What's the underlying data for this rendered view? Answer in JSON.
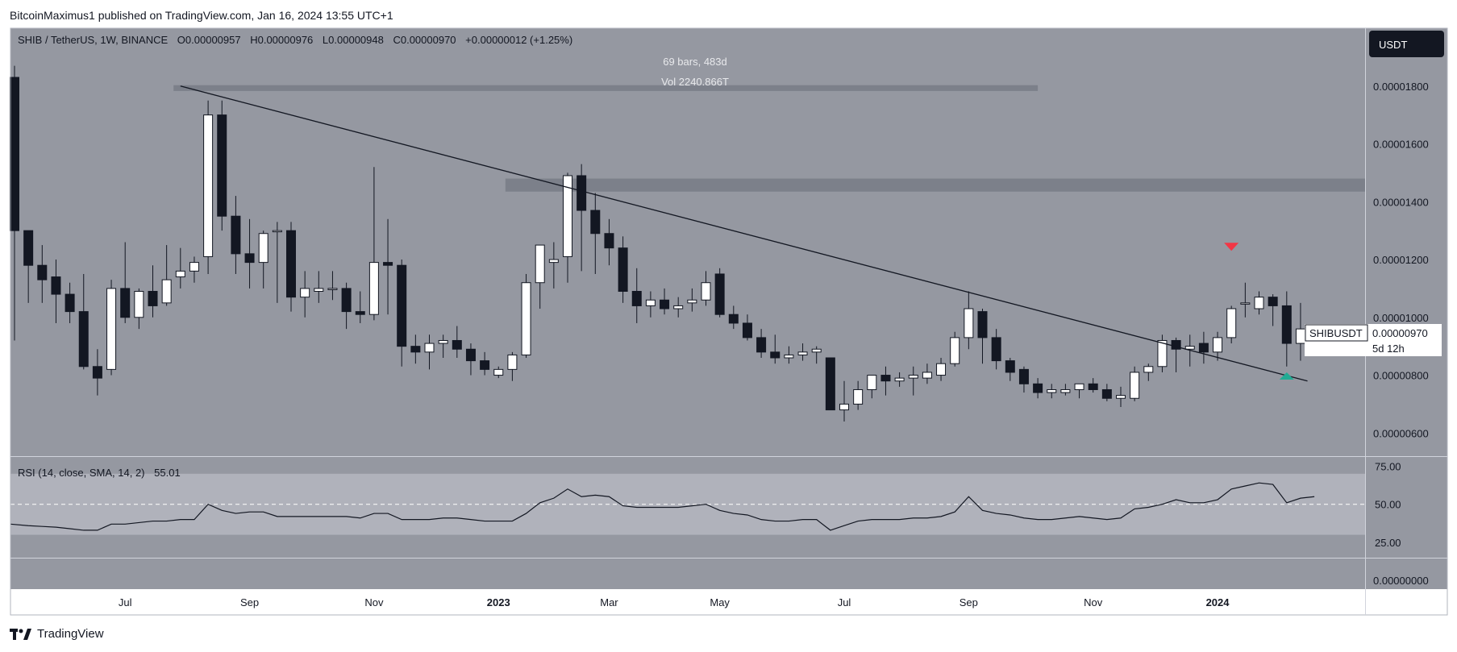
{
  "header": {
    "published_text": "BitcoinMaximus1 published on TradingView.com, Jan 16, 2024 13:55 UTC+1"
  },
  "legend": {
    "symbol": "SHIB / TetherUS, 1W, BINANCE",
    "open_label": "O",
    "open": "0.00000957",
    "high_label": "H",
    "high": "0.00000976",
    "low_label": "L",
    "low": "0.00000948",
    "close_label": "C",
    "close": "0.00000970",
    "change": "+0.00000012 (+1.25%)"
  },
  "range_info": {
    "bars": "69 bars, 483d",
    "vol": "Vol 2240.866T"
  },
  "currency_button": "USDT",
  "price_tag": {
    "symbol": "SHIBUSDT",
    "price": "0.00000970",
    "countdown": "5d 12h"
  },
  "footer": {
    "brand": "TradingView"
  },
  "colors": {
    "background": "#9598a1",
    "up_body": "#ffffff",
    "down_body": "#131722",
    "wick": "#131722",
    "resistance": "#787b86",
    "trendline": "#131722",
    "rsi_band": "#b2b5be",
    "bearish_marker": "#f23645",
    "bullish_marker": "#22ab94"
  },
  "chart_data": [
    {
      "type": "candlestick",
      "title": "SHIB / TetherUS, 1W, BINANCE",
      "x_tick_labels": [
        "Jul",
        "Sep",
        "Nov",
        "2023",
        "Mar",
        "May",
        "Jul",
        "Sep",
        "Nov",
        "2024"
      ],
      "x_tick_index": [
        8,
        17,
        26,
        35,
        43,
        51,
        60,
        69,
        78,
        87
      ],
      "y_axis_labels": [
        "0.00001800",
        "0.00001600",
        "0.00001400",
        "0.00001200",
        "0.00001000",
        "0.00000800",
        "0.00000600"
      ],
      "y_axis_values": [
        18,
        16,
        14,
        12,
        10,
        8,
        6
      ],
      "y_unit_multiplier": "1e-6",
      "ylim": [
        5.2,
        20.0
      ],
      "ohlc": [
        [
          18.3,
          18.7,
          9.2,
          13.0
        ],
        [
          13.0,
          13.0,
          10.5,
          11.8
        ],
        [
          11.8,
          12.5,
          10.5,
          11.3
        ],
        [
          11.4,
          12.0,
          9.8,
          10.8
        ],
        [
          10.8,
          11.2,
          9.8,
          10.2
        ],
        [
          10.2,
          11.5,
          8.2,
          8.3
        ],
        [
          8.3,
          8.9,
          7.3,
          7.9
        ],
        [
          8.2,
          11.3,
          8.0,
          11.0
        ],
        [
          11.0,
          12.6,
          9.8,
          10.0
        ],
        [
          10.0,
          11.0,
          9.6,
          10.9
        ],
        [
          10.9,
          11.8,
          10.0,
          10.4
        ],
        [
          10.5,
          12.5,
          10.4,
          11.3
        ],
        [
          11.4,
          12.4,
          11.0,
          11.6
        ],
        [
          11.6,
          12.1,
          11.2,
          11.9
        ],
        [
          12.1,
          17.5,
          11.5,
          17.0
        ],
        [
          17.0,
          17.5,
          13.0,
          13.5
        ],
        [
          13.5,
          14.2,
          11.5,
          12.2
        ],
        [
          12.2,
          13.4,
          11.0,
          11.9
        ],
        [
          11.9,
          13.0,
          11.0,
          12.9
        ],
        [
          13.0,
          13.3,
          10.5,
          13.0
        ],
        [
          13.0,
          13.3,
          10.2,
          10.7
        ],
        [
          10.7,
          11.6,
          10.0,
          11.0
        ],
        [
          10.9,
          11.6,
          10.5,
          11.0
        ],
        [
          11.0,
          11.6,
          10.6,
          11.0
        ],
        [
          11.0,
          11.2,
          9.6,
          10.2
        ],
        [
          10.2,
          10.9,
          9.8,
          10.1
        ],
        [
          10.1,
          15.2,
          9.9,
          11.9
        ],
        [
          11.9,
          13.4,
          10.1,
          11.8
        ],
        [
          11.8,
          12.0,
          8.3,
          9.0
        ],
        [
          9.0,
          9.4,
          8.4,
          8.8
        ],
        [
          8.8,
          9.4,
          8.2,
          9.1
        ],
        [
          9.1,
          9.4,
          8.6,
          9.2
        ],
        [
          9.2,
          9.7,
          8.6,
          8.9
        ],
        [
          8.9,
          9.1,
          8.0,
          8.5
        ],
        [
          8.5,
          8.8,
          8.0,
          8.2
        ],
        [
          8.0,
          8.3,
          7.9,
          8.2
        ],
        [
          8.2,
          8.8,
          7.8,
          8.7
        ],
        [
          8.7,
          11.5,
          8.6,
          11.2
        ],
        [
          11.2,
          12.4,
          10.3,
          12.5
        ],
        [
          11.9,
          12.6,
          11.0,
          12.0
        ],
        [
          12.1,
          15.0,
          11.2,
          14.9
        ],
        [
          14.9,
          15.3,
          11.6,
          13.7
        ],
        [
          13.7,
          14.3,
          11.5,
          12.9
        ],
        [
          12.9,
          13.4,
          11.8,
          12.4
        ],
        [
          12.4,
          12.8,
          10.5,
          10.9
        ],
        [
          10.9,
          11.7,
          9.8,
          10.4
        ],
        [
          10.4,
          10.9,
          10.0,
          10.6
        ],
        [
          10.6,
          11.0,
          10.1,
          10.3
        ],
        [
          10.3,
          10.7,
          10.0,
          10.4
        ],
        [
          10.5,
          11.0,
          10.2,
          10.6
        ],
        [
          10.6,
          11.6,
          10.4,
          11.2
        ],
        [
          11.5,
          11.7,
          10.0,
          10.1
        ],
        [
          10.1,
          10.4,
          9.6,
          9.8
        ],
        [
          9.8,
          10.1,
          9.2,
          9.3
        ],
        [
          9.3,
          9.6,
          8.6,
          8.8
        ],
        [
          8.8,
          9.4,
          8.4,
          8.6
        ],
        [
          8.6,
          9.0,
          8.4,
          8.7
        ],
        [
          8.7,
          9.1,
          8.5,
          8.8
        ],
        [
          8.8,
          9.0,
          8.4,
          8.9
        ],
        [
          8.6,
          8.6,
          6.8,
          6.8
        ],
        [
          6.8,
          7.8,
          6.4,
          7.0
        ],
        [
          7.0,
          7.8,
          6.8,
          7.5
        ],
        [
          7.5,
          8.0,
          7.2,
          8.0
        ],
        [
          8.0,
          8.3,
          7.3,
          7.8
        ],
        [
          7.8,
          8.1,
          7.6,
          7.9
        ],
        [
          7.9,
          8.3,
          7.3,
          8.0
        ],
        [
          7.9,
          8.4,
          7.7,
          8.1
        ],
        [
          8.0,
          8.6,
          7.8,
          8.4
        ],
        [
          8.4,
          9.5,
          8.3,
          9.3
        ],
        [
          9.3,
          10.9,
          8.9,
          10.3
        ],
        [
          10.2,
          10.3,
          8.4,
          9.3
        ],
        [
          9.3,
          9.6,
          8.2,
          8.5
        ],
        [
          8.5,
          8.6,
          7.8,
          8.1
        ],
        [
          8.2,
          8.3,
          7.4,
          7.7
        ],
        [
          7.7,
          7.9,
          7.2,
          7.4
        ],
        [
          7.4,
          7.7,
          7.2,
          7.5
        ],
        [
          7.4,
          7.7,
          7.3,
          7.5
        ],
        [
          7.5,
          7.7,
          7.2,
          7.7
        ],
        [
          7.7,
          7.9,
          7.4,
          7.5
        ],
        [
          7.5,
          7.7,
          7.1,
          7.2
        ],
        [
          7.2,
          7.6,
          6.9,
          7.3
        ],
        [
          7.2,
          8.3,
          7.1,
          8.1
        ],
        [
          8.1,
          8.4,
          7.8,
          8.3
        ],
        [
          8.3,
          9.4,
          8.1,
          9.2
        ],
        [
          9.2,
          9.3,
          8.1,
          8.9
        ],
        [
          8.9,
          9.4,
          8.3,
          9.0
        ],
        [
          9.1,
          9.5,
          8.4,
          8.8
        ],
        [
          8.8,
          9.5,
          8.5,
          9.3
        ],
        [
          9.3,
          10.4,
          9.1,
          10.3
        ],
        [
          10.5,
          11.2,
          10.0,
          10.5
        ],
        [
          10.3,
          10.9,
          10.1,
          10.7
        ],
        [
          10.7,
          10.8,
          9.7,
          10.4
        ],
        [
          10.4,
          10.9,
          8.3,
          9.1
        ],
        [
          9.1,
          10.5,
          8.5,
          9.6
        ],
        [
          9.57,
          9.76,
          9.48,
          9.7
        ]
      ],
      "resistance_zones": [
        {
          "low": 17.83,
          "high": 18.03
        },
        {
          "low": 14.35,
          "high": 14.8
        }
      ],
      "trendline": {
        "from": {
          "index": 12,
          "price": 18.0
        },
        "to": {
          "index": 93.5,
          "price": 7.8
        }
      },
      "markers": [
        {
          "type": "bearish",
          "index": 88,
          "price": 12.3
        },
        {
          "type": "bullish",
          "index": 92,
          "price": 8.1
        }
      ]
    },
    {
      "type": "line",
      "title": "RSI (14, close, SMA, 14, 2)",
      "last_value": "55.01",
      "y_axis_labels": [
        "75.00",
        "50.00",
        "25.00"
      ],
      "y_axis_values": [
        75,
        50,
        25
      ],
      "ylim": [
        15,
        81
      ],
      "band": [
        30,
        70
      ],
      "midline": 50,
      "values": [
        37,
        36,
        35.5,
        35,
        34,
        33,
        33,
        37,
        37,
        38,
        39,
        39,
        40,
        40,
        50,
        46,
        44,
        45,
        45,
        42,
        42,
        42,
        42,
        42,
        42,
        41,
        44,
        44,
        40,
        40,
        40,
        41,
        41,
        40,
        39,
        39,
        39,
        44,
        51,
        54,
        60,
        55,
        56,
        55,
        49,
        48,
        48,
        48,
        48,
        49,
        50,
        46,
        44,
        43,
        40,
        39,
        39,
        40,
        40,
        33,
        36,
        39,
        40,
        40,
        40,
        41,
        41,
        42,
        45,
        55,
        46,
        44,
        43,
        41,
        40,
        40,
        41,
        42,
        41,
        40,
        41,
        47,
        48,
        50,
        53,
        51,
        51,
        53,
        60,
        62,
        64,
        63,
        51,
        54,
        55
      ]
    }
  ]
}
